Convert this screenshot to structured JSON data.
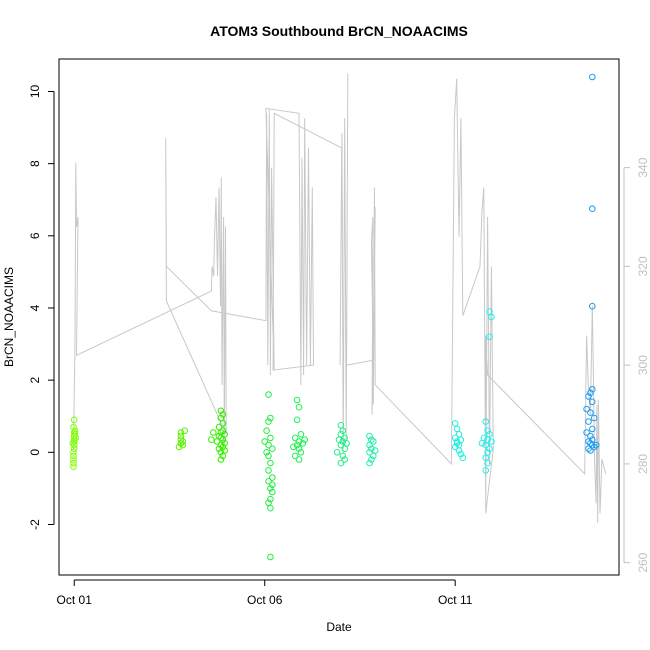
{
  "chart_data": {
    "type": "scatter",
    "title": "ATOM3 Southbound BrCN_NOAACIMS",
    "xlabel": "Date",
    "ylabel": "BrCN_NOAACIMS",
    "x_ticks": [
      "Oct 01",
      "Oct 06",
      "Oct 11"
    ],
    "x_tick_days": [
      1,
      6,
      11
    ],
    "xlim_days": [
      0.6,
      15.3
    ],
    "ylim": [
      -3.4,
      10.9
    ],
    "y_ticks": [
      -2,
      0,
      2,
      4,
      6,
      8,
      10
    ],
    "y2lim": [
      257.5,
      362
    ],
    "y2_ticks": [
      260,
      280,
      300,
      320,
      340
    ],
    "grid": false,
    "legend": "none",
    "series": [
      {
        "color": "#7FFF00",
        "points": [
          [
            1.0,
            0.9
          ],
          [
            1.0,
            0.55
          ],
          [
            1.0,
            0.45
          ],
          [
            1.0,
            0.35
          ],
          [
            1.0,
            0.3
          ],
          [
            1.0,
            0.2
          ],
          [
            1.0,
            0.1
          ],
          [
            0.98,
            0.0
          ],
          [
            0.98,
            -0.1
          ],
          [
            0.98,
            -0.2
          ],
          [
            0.98,
            -0.3
          ],
          [
            0.98,
            -0.4
          ],
          [
            1.02,
            0.6
          ],
          [
            1.04,
            0.4
          ],
          [
            0.96,
            0.25
          ],
          [
            1.02,
            0.5
          ],
          [
            0.98,
            0.7
          ]
        ]
      },
      {
        "color": "#5CF000",
        "points": [
          [
            3.8,
            0.55
          ],
          [
            3.8,
            0.45
          ],
          [
            3.8,
            0.35
          ],
          [
            3.85,
            0.3
          ],
          [
            3.8,
            0.25
          ],
          [
            3.85,
            0.2
          ],
          [
            3.75,
            0.15
          ],
          [
            3.9,
            0.6
          ]
        ]
      },
      {
        "color": "#33EE00",
        "points": [
          [
            4.85,
            1.15
          ],
          [
            4.9,
            1.05
          ],
          [
            4.85,
            0.95
          ],
          [
            4.9,
            0.8
          ],
          [
            4.8,
            0.7
          ],
          [
            4.9,
            0.6
          ],
          [
            4.85,
            0.55
          ],
          [
            4.95,
            0.5
          ],
          [
            4.8,
            0.45
          ],
          [
            4.85,
            0.4
          ],
          [
            4.9,
            0.35
          ],
          [
            4.75,
            0.3
          ],
          [
            4.95,
            0.25
          ],
          [
            4.85,
            0.2
          ],
          [
            4.9,
            0.15
          ],
          [
            4.8,
            0.1
          ],
          [
            4.95,
            0.05
          ],
          [
            4.85,
            0.0
          ],
          [
            4.9,
            -0.1
          ],
          [
            4.85,
            -0.2
          ],
          [
            4.65,
            0.55
          ],
          [
            4.6,
            0.35
          ]
        ]
      },
      {
        "color": "#22EE44",
        "points": [
          [
            6.1,
            1.6
          ],
          [
            6.15,
            0.95
          ],
          [
            6.1,
            0.85
          ],
          [
            6.05,
            0.6
          ],
          [
            6.15,
            0.4
          ],
          [
            6.0,
            0.3
          ],
          [
            6.1,
            0.2
          ],
          [
            6.2,
            0.1
          ],
          [
            6.05,
            0.0
          ],
          [
            6.1,
            -0.1
          ],
          [
            6.15,
            -0.3
          ],
          [
            6.1,
            -0.5
          ],
          [
            6.2,
            -0.7
          ],
          [
            6.1,
            -0.8
          ],
          [
            6.15,
            -1.0
          ],
          [
            6.2,
            -1.1
          ],
          [
            6.15,
            -1.3
          ],
          [
            6.1,
            -1.4
          ],
          [
            6.15,
            -1.55
          ],
          [
            6.2,
            -0.9
          ],
          [
            6.15,
            -2.9
          ]
        ]
      },
      {
        "color": "#22EE55",
        "points": [
          [
            6.85,
            1.45
          ],
          [
            6.9,
            1.25
          ],
          [
            6.85,
            0.9
          ],
          [
            6.95,
            0.5
          ],
          [
            6.8,
            0.4
          ],
          [
            6.9,
            0.3
          ],
          [
            7.0,
            0.25
          ],
          [
            6.85,
            0.2
          ],
          [
            6.9,
            0.1
          ],
          [
            6.95,
            0.0
          ],
          [
            6.8,
            -0.1
          ],
          [
            6.9,
            -0.2
          ],
          [
            7.05,
            0.35
          ],
          [
            6.75,
            0.15
          ]
        ]
      },
      {
        "color": "#22EE88",
        "points": [
          [
            8.0,
            0.75
          ],
          [
            8.05,
            0.6
          ],
          [
            8.0,
            0.5
          ],
          [
            8.1,
            0.4
          ],
          [
            7.95,
            0.35
          ],
          [
            8.05,
            0.3
          ],
          [
            8.15,
            0.25
          ],
          [
            8.0,
            0.2
          ],
          [
            8.1,
            0.1
          ],
          [
            7.9,
            0.0
          ],
          [
            8.05,
            -0.1
          ],
          [
            8.1,
            -0.2
          ],
          [
            8.0,
            -0.3
          ]
        ]
      },
      {
        "color": "#22EEAA",
        "points": [
          [
            8.75,
            0.45
          ],
          [
            8.8,
            0.35
          ],
          [
            8.85,
            0.3
          ],
          [
            8.75,
            0.2
          ],
          [
            8.8,
            0.1
          ],
          [
            8.9,
            0.05
          ],
          [
            8.75,
            0.0
          ],
          [
            8.85,
            -0.1
          ],
          [
            8.8,
            -0.2
          ],
          [
            8.75,
            -0.3
          ]
        ]
      },
      {
        "color": "#22EEDD",
        "points": [
          [
            11.0,
            0.8
          ],
          [
            11.05,
            0.65
          ],
          [
            11.1,
            0.5
          ],
          [
            11.0,
            0.4
          ],
          [
            11.15,
            0.35
          ],
          [
            11.05,
            0.3
          ],
          [
            11.1,
            0.2
          ],
          [
            11.0,
            0.15
          ],
          [
            11.1,
            0.05
          ],
          [
            11.15,
            -0.05
          ],
          [
            11.2,
            -0.15
          ],
          [
            11.05,
            0.25
          ]
        ]
      },
      {
        "color": "#22EEEE",
        "points": [
          [
            11.9,
            3.9
          ],
          [
            11.95,
            3.75
          ],
          [
            11.9,
            3.2
          ],
          [
            11.8,
            0.85
          ],
          [
            11.85,
            0.6
          ],
          [
            11.9,
            0.5
          ],
          [
            11.75,
            0.4
          ],
          [
            11.85,
            0.35
          ],
          [
            11.95,
            0.3
          ],
          [
            11.8,
            0.2
          ],
          [
            11.9,
            0.1
          ],
          [
            11.85,
            0.0
          ],
          [
            11.8,
            -0.15
          ],
          [
            11.85,
            -0.3
          ],
          [
            11.8,
            -0.5
          ],
          [
            11.7,
            0.25
          ]
        ]
      },
      {
        "color": "#1E9CEE",
        "points": [
          [
            14.6,
            10.4
          ],
          [
            14.6,
            6.75
          ],
          [
            14.6,
            4.05
          ],
          [
            14.6,
            1.75
          ],
          [
            14.55,
            1.65
          ],
          [
            14.5,
            1.55
          ],
          [
            14.6,
            1.4
          ],
          [
            14.45,
            1.2
          ],
          [
            14.55,
            1.1
          ],
          [
            14.65,
            0.95
          ],
          [
            14.5,
            0.85
          ],
          [
            14.6,
            0.65
          ],
          [
            14.45,
            0.55
          ],
          [
            14.55,
            0.45
          ],
          [
            14.6,
            0.35
          ],
          [
            14.5,
            0.3
          ],
          [
            14.55,
            0.25
          ],
          [
            14.6,
            0.2
          ],
          [
            14.65,
            0.15
          ],
          [
            14.5,
            0.1
          ],
          [
            14.55,
            0.05
          ],
          [
            14.7,
            0.2
          ]
        ]
      }
    ],
    "secondary_line": {
      "color": "#c8c8c8",
      "points": [
        [
          0.98,
          283
        ],
        [
          1.02,
          305
        ],
        [
          1.04,
          341
        ],
        [
          1.06,
          328
        ],
        [
          1.1,
          330
        ],
        [
          1.06,
          302
        ],
        [
          4.6,
          315
        ],
        [
          4.62,
          320
        ],
        [
          4.66,
          318
        ],
        [
          4.68,
          325
        ],
        [
          4.72,
          334
        ],
        [
          4.76,
          318
        ],
        [
          4.8,
          336
        ],
        [
          4.84,
          312
        ],
        [
          4.86,
          338
        ],
        [
          4.88,
          296
        ],
        [
          4.92,
          330
        ],
        [
          4.94,
          284
        ],
        [
          4.97,
          328
        ],
        [
          4.99,
          286
        ],
        [
          3.42,
          313
        ],
        [
          3.4,
          346
        ],
        [
          3.42,
          320
        ],
        [
          4.6,
          311
        ],
        [
          6.03,
          309
        ],
        [
          6.05,
          351
        ],
        [
          6.08,
          300
        ],
        [
          6.12,
          352
        ],
        [
          6.15,
          298
        ],
        [
          6.18,
          340
        ],
        [
          6.25,
          299
        ],
        [
          6.03,
          352
        ],
        [
          6.9,
          351
        ],
        [
          6.95,
          296
        ],
        [
          6.98,
          342
        ],
        [
          7.02,
          298
        ],
        [
          7.05,
          350
        ],
        [
          7.1,
          300
        ],
        [
          7.15,
          344
        ],
        [
          7.2,
          300
        ],
        [
          7.25,
          336
        ],
        [
          7.28,
          300
        ],
        [
          6.22,
          299
        ],
        [
          6.25,
          351
        ],
        [
          8.02,
          344
        ],
        [
          7.98,
          300
        ],
        [
          8.03,
          347
        ],
        [
          8.06,
          282
        ],
        [
          8.1,
          350
        ],
        [
          8.14,
          285
        ],
        [
          8.18,
          359
        ],
        [
          8.15,
          300
        ],
        [
          8.85,
          301
        ],
        [
          8.8,
          325
        ],
        [
          8.84,
          330
        ],
        [
          8.82,
          290
        ],
        [
          8.9,
          332
        ],
        [
          8.85,
          292
        ],
        [
          8.88,
          336
        ],
        [
          8.9,
          296
        ],
        [
          10.9,
          280
        ],
        [
          10.98,
          350
        ],
        [
          11.04,
          358
        ],
        [
          11.1,
          326
        ],
        [
          11.15,
          350
        ],
        [
          11.2,
          310
        ],
        [
          11.65,
          320
        ],
        [
          11.7,
          331
        ],
        [
          11.75,
          336
        ],
        [
          11.8,
          272
        ],
        [
          11.85,
          330
        ],
        [
          11.9,
          280
        ],
        [
          11.95,
          320
        ],
        [
          12.0,
          283
        ],
        [
          11.8,
          270
        ],
        [
          11.8,
          306
        ],
        [
          11.85,
          298
        ],
        [
          14.4,
          278
        ],
        [
          14.45,
          306
        ],
        [
          14.5,
          295
        ],
        [
          14.55,
          290
        ],
        [
          14.6,
          312
        ],
        [
          14.62,
          302
        ],
        [
          14.66,
          280
        ],
        [
          14.7,
          272
        ],
        [
          14.72,
          292
        ],
        [
          14.74,
          268
        ],
        [
          14.76,
          293
        ],
        [
          14.78,
          282
        ],
        [
          14.8,
          270
        ],
        [
          14.85,
          281
        ],
        [
          14.95,
          278
        ]
      ]
    }
  }
}
